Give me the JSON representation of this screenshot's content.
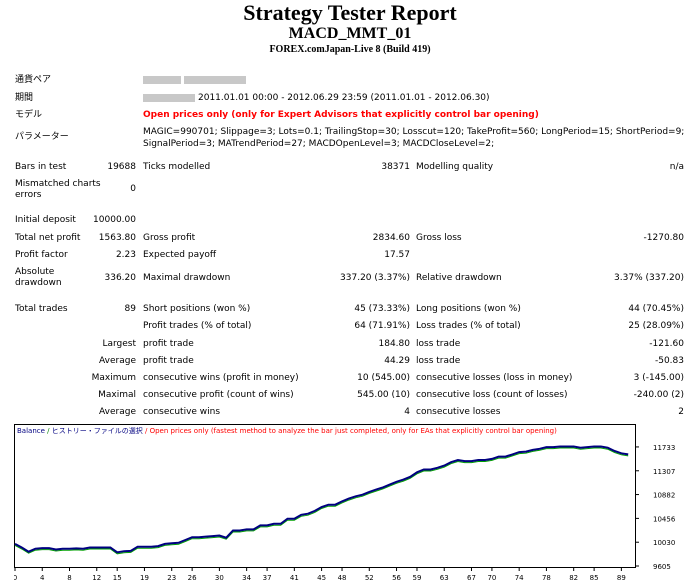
{
  "report": {
    "title": "Strategy Tester Report",
    "expert": "MACD_MMT_01",
    "server": "FOREX.comJapan-Live 8 (Build 419)"
  },
  "info": {
    "symbol_label": "通貨ペア",
    "period_label": "期間",
    "period_value": "2011.01.01 00:00 - 2012.06.29 23:59 (2011.01.01 - 2012.06.30)",
    "model_label": "モデル",
    "model_value": "Open prices only (only for Expert Advisors that explicitly control bar opening)",
    "params_label": "パラメーター",
    "params_line1": "MAGIC=990701; Slippage=3; Lots=0.1; TrailingStop=30; Losscut=120; TakeProfit=560; LongPeriod=15; ShortPeriod=9;",
    "params_line2": "SignalPeriod=3; MATrendPeriod=27; MACDOpenLevel=3; MACDCloseLevel=2;"
  },
  "stats": {
    "bars_label": "Bars in test",
    "bars_value": "19688",
    "ticks_label": "Ticks modelled",
    "ticks_value": "38371",
    "quality_label": "Modelling quality",
    "quality_value": "n/a",
    "mismatch_label1": "Mismatched charts",
    "mismatch_label2": "errors",
    "mismatch_value": "0",
    "deposit_label": "Initial deposit",
    "deposit_value": "10000.00",
    "net_label": "Total net profit",
    "net_value": "1563.80",
    "gross_profit_label": "Gross profit",
    "gross_profit_value": "2834.60",
    "gross_loss_label": "Gross loss",
    "gross_loss_value": "-1270.80",
    "pf_label": "Profit factor",
    "pf_value": "2.23",
    "ep_label": "Expected payoff",
    "ep_value": "17.57",
    "abs_dd_label1": "Absolute",
    "abs_dd_label2": "drawdown",
    "abs_dd_value": "336.20",
    "max_dd_label": "Maximal drawdown",
    "max_dd_value": "337.20 (3.37%)",
    "rel_dd_label": "Relative drawdown",
    "rel_dd_value": "3.37% (337.20)",
    "trades_label": "Total trades",
    "trades_value": "89",
    "short_label": "Short positions (won %)",
    "short_value": "45 (73.33%)",
    "long_label": "Long positions (won %)",
    "long_value": "44 (70.45%)",
    "profit_trades_label": "Profit trades (% of total)",
    "profit_trades_value": "64 (71.91%)",
    "loss_trades_label": "Loss trades (% of total)",
    "loss_trades_value": "25 (28.09%)",
    "largest_label": "Largest",
    "largest_profit_label": "profit trade",
    "largest_profit_value": "184.80",
    "largest_loss_label": "loss trade",
    "largest_loss_value": "-121.60",
    "average_label": "Average",
    "avg_profit_label": "profit trade",
    "avg_profit_value": "44.29",
    "avg_loss_label": "loss trade",
    "avg_loss_value": "-50.83",
    "maximum_label": "Maximum",
    "max_cw_label": "consecutive wins (profit in money)",
    "max_cw_value": "10 (545.00)",
    "max_cl_label": "consecutive losses (loss in money)",
    "max_cl_value": "3 (-145.00)",
    "maximal_label": "Maximal",
    "maximal_cp_label": "consecutive profit (count of wins)",
    "maximal_cp_value": "545.00 (10)",
    "maximal_cl_label": "consecutive loss (count of losses)",
    "maximal_cl_value": "-240.00 (2)",
    "average2_label": "Average",
    "avg_cw_label": "consecutive wins",
    "avg_cw_value": "4",
    "avg_cl_label": "consecutive losses",
    "avg_cl_value": "2"
  },
  "chart_data": {
    "type": "line",
    "legend": {
      "balance": "Balance",
      "history": "ヒストリー・ファイルの選択",
      "model": "Open prices only (fastest method to analyze the bar just completed, only for EAs that explicitly control bar opening)"
    },
    "xlabel": "",
    "ylabel": "",
    "ylim": [
      9605,
      12000
    ],
    "xlim": [
      0,
      91
    ],
    "x_ticks": [
      "0",
      "4",
      "8",
      "12",
      "15",
      "19",
      "23",
      "26",
      "30",
      "34",
      "37",
      "41",
      "45",
      "48",
      "52",
      "56",
      "59",
      "63",
      "67",
      "70",
      "74",
      "78",
      "82",
      "85",
      "89"
    ],
    "y_ticks": [
      "11733",
      "11307",
      "10882",
      "10456",
      "10030",
      "9605"
    ],
    "balance_color": "#000080",
    "equity_color": "#00a000",
    "x": [
      0,
      1,
      2,
      3,
      4,
      5,
      6,
      7,
      8,
      9,
      10,
      11,
      12,
      13,
      14,
      15,
      16,
      17,
      18,
      19,
      20,
      21,
      22,
      23,
      24,
      25,
      26,
      27,
      28,
      29,
      30,
      31,
      32,
      33,
      34,
      35,
      36,
      37,
      38,
      39,
      40,
      41,
      42,
      43,
      44,
      45,
      46,
      47,
      48,
      49,
      50,
      51,
      52,
      53,
      54,
      55,
      56,
      57,
      58,
      59,
      60,
      61,
      62,
      63,
      64,
      65,
      66,
      67,
      68,
      69,
      70,
      71,
      72,
      73,
      74,
      75,
      76,
      77,
      78,
      79,
      80,
      81,
      82,
      83,
      84,
      85,
      86,
      87,
      88,
      89,
      90
    ],
    "values": [
      10000,
      9935,
      9860,
      9915,
      9925,
      9925,
      9900,
      9915,
      9915,
      9920,
      9915,
      9935,
      9935,
      9935,
      9935,
      9850,
      9870,
      9875,
      9950,
      9950,
      9950,
      9960,
      10000,
      10010,
      10020,
      10070,
      10120,
      10120,
      10130,
      10140,
      10150,
      10110,
      10240,
      10240,
      10260,
      10260,
      10330,
      10330,
      10360,
      10360,
      10450,
      10450,
      10520,
      10540,
      10590,
      10660,
      10700,
      10700,
      10760,
      10810,
      10850,
      10880,
      10930,
      10970,
      11010,
      11060,
      11110,
      11150,
      11200,
      11280,
      11330,
      11330,
      11360,
      11400,
      11460,
      11500,
      11480,
      11480,
      11500,
      11500,
      11520,
      11560,
      11560,
      11600,
      11640,
      11650,
      11680,
      11700,
      11730,
      11730,
      11740,
      11740,
      11740,
      11720,
      11730,
      11740,
      11740,
      11720,
      11660,
      11620,
      11600
    ]
  }
}
